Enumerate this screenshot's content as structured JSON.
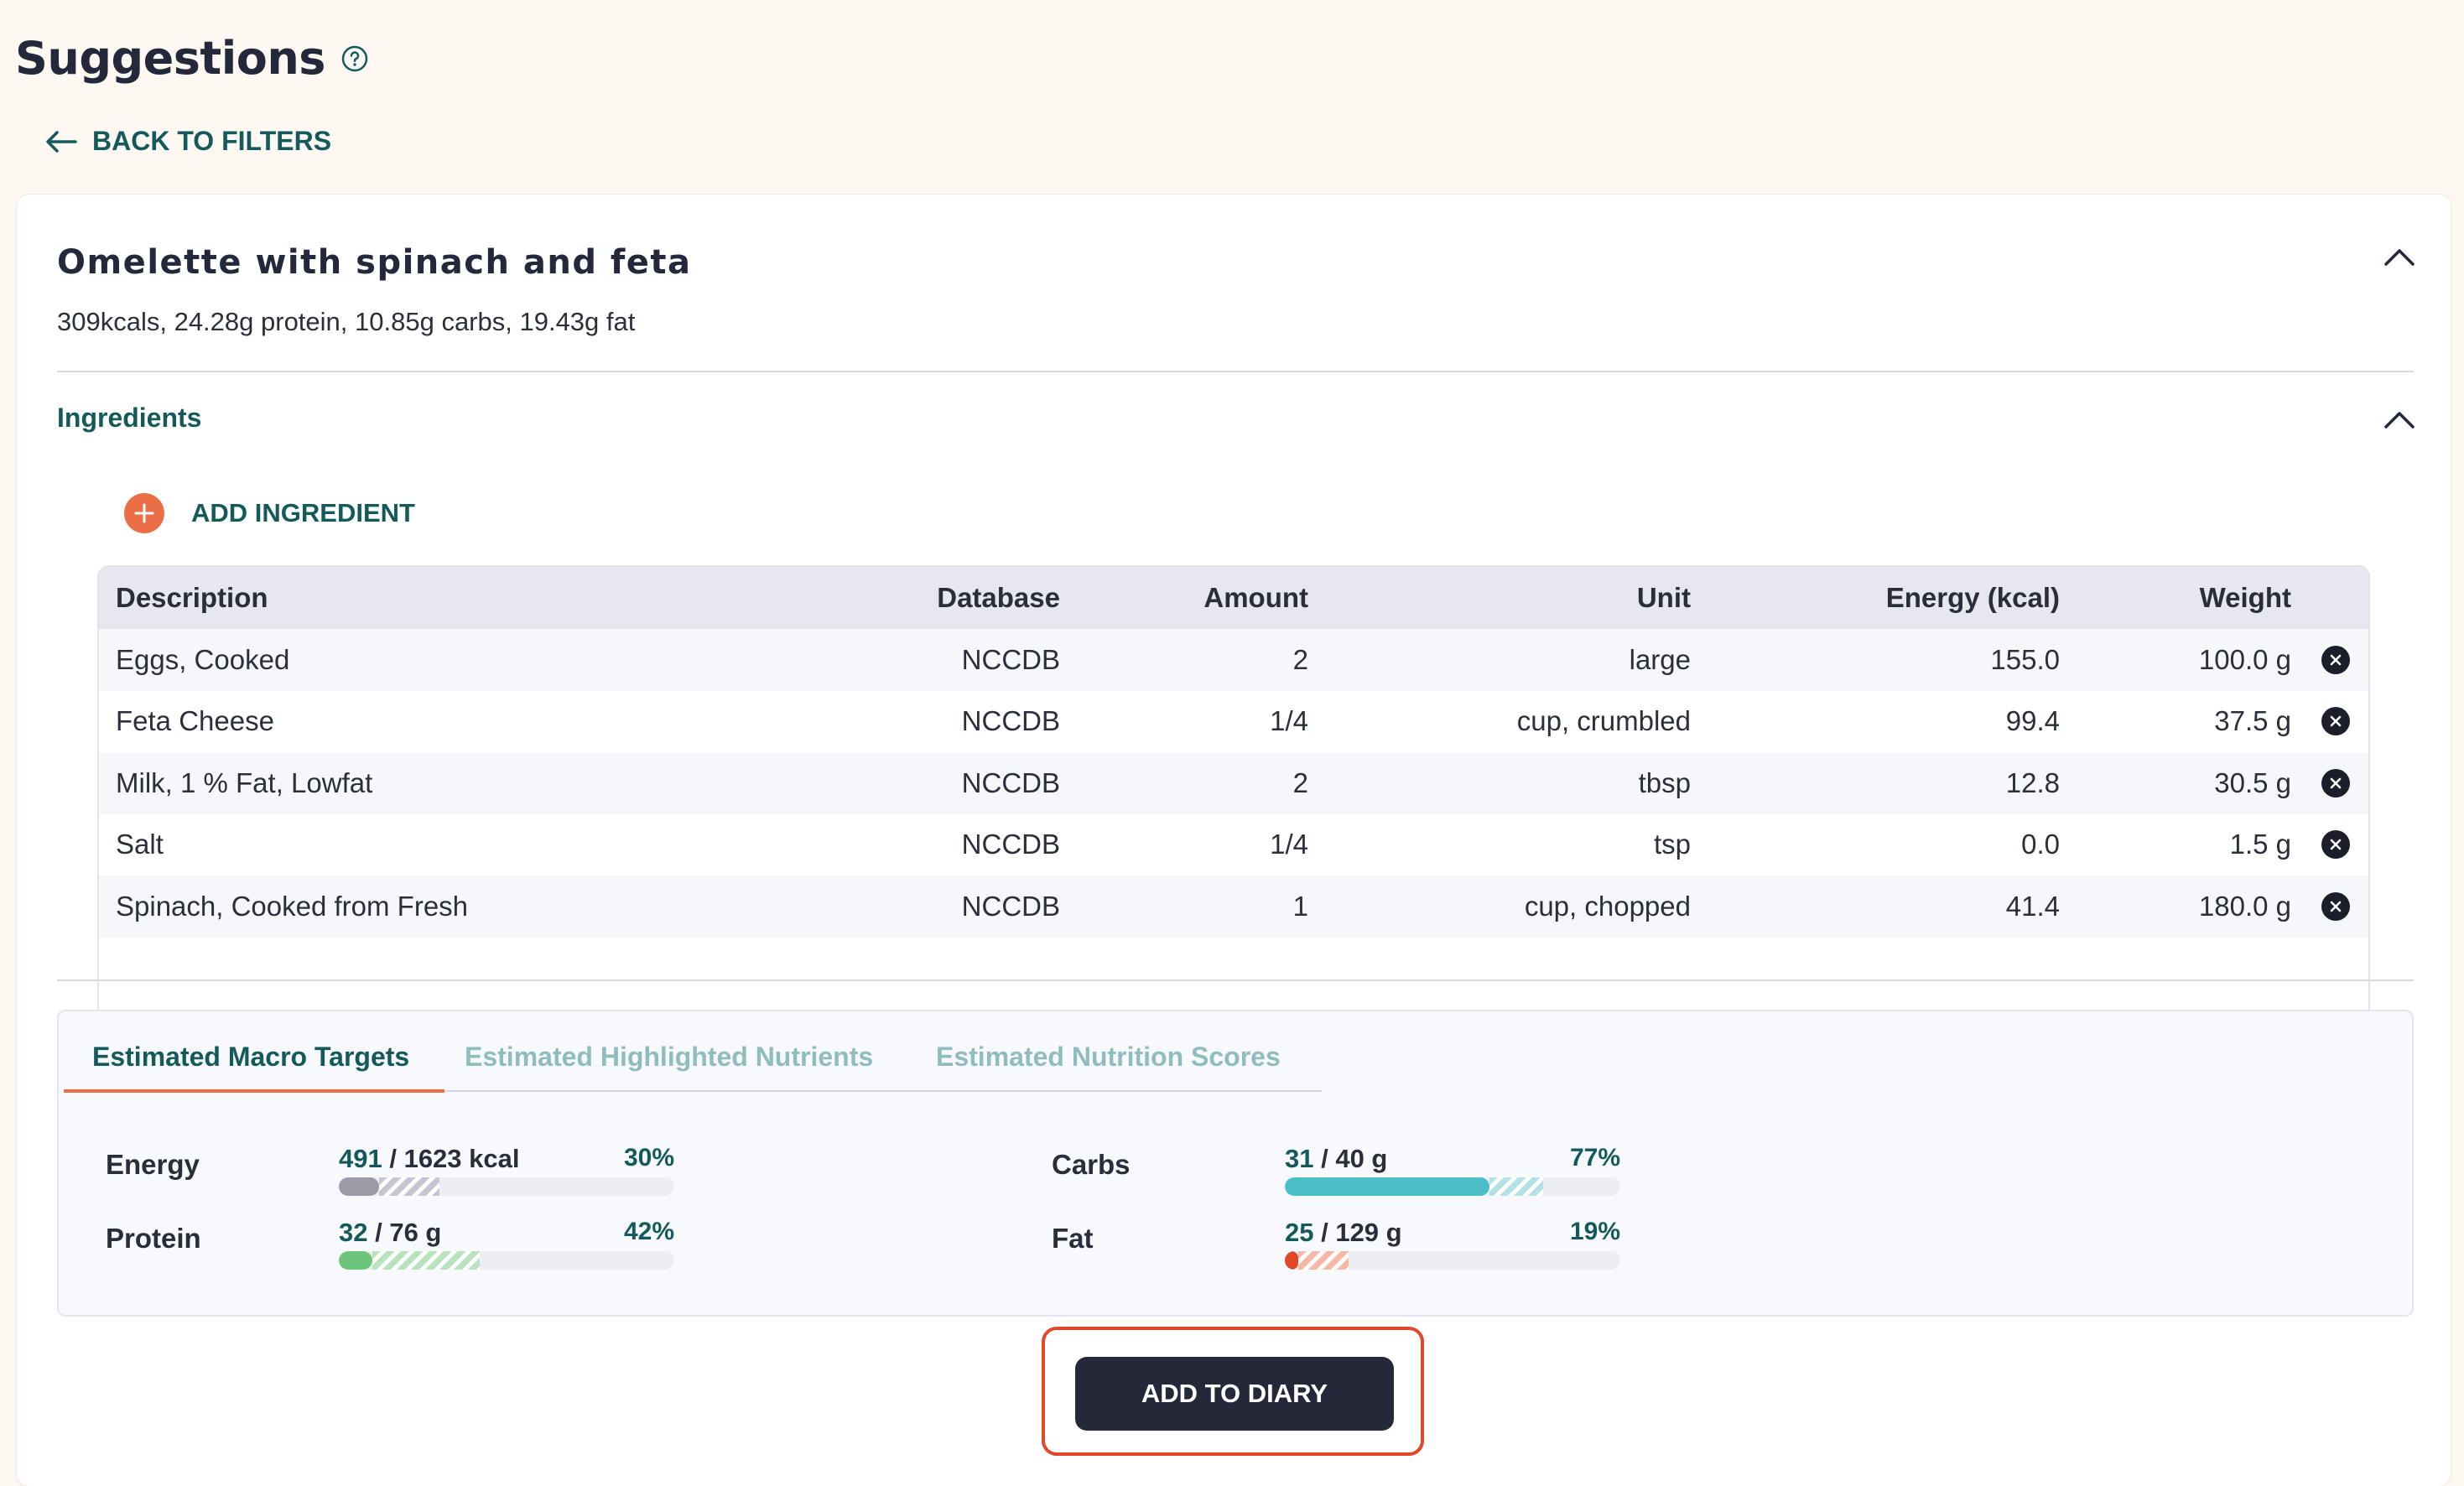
{
  "page": {
    "title": "Suggestions",
    "back_label": "BACK TO FILTERS"
  },
  "recipe": {
    "name": "Omelette with spinach and feta",
    "summary": "309kcals, 24.28g protein, 10.85g carbs, 19.43g fat",
    "ingredients_label": "Ingredients",
    "add_ingredient_label": "ADD INGREDIENT"
  },
  "table": {
    "headers": {
      "description": "Description",
      "database": "Database",
      "amount": "Amount",
      "unit": "Unit",
      "energy": "Energy (kcal)",
      "weight": "Weight"
    },
    "rows": [
      {
        "description": "Eggs, Cooked",
        "database": "NCCDB",
        "amount": "2",
        "unit": "large",
        "energy": "155.0",
        "weight": "100.0 g"
      },
      {
        "description": "Feta Cheese",
        "database": "NCCDB",
        "amount": "1/4",
        "unit": "cup, crumbled",
        "energy": "99.4",
        "weight": "37.5 g"
      },
      {
        "description": "Milk, 1 % Fat, Lowfat",
        "database": "NCCDB",
        "amount": "2",
        "unit": "tbsp",
        "energy": "12.8",
        "weight": "30.5 g"
      },
      {
        "description": "Salt",
        "database": "NCCDB",
        "amount": "1/4",
        "unit": "tsp",
        "energy": "0.0",
        "weight": "1.5 g"
      },
      {
        "description": "Spinach, Cooked from Fresh",
        "database": "NCCDB",
        "amount": "1",
        "unit": "cup, chopped",
        "energy": "41.4",
        "weight": "180.0 g"
      }
    ]
  },
  "tabs": {
    "macro": "Estimated Macro Targets",
    "nutrients": "Estimated Highlighted Nutrients",
    "scores": "Estimated Nutrition Scores"
  },
  "macros": {
    "energy": {
      "label": "Energy",
      "current": "491",
      "total": " / 1623 kcal",
      "pct": "30%",
      "fill": 0.12,
      "extra": 0.18,
      "color": "#9b9ba8",
      "stripe": "#c6c6d2"
    },
    "protein": {
      "label": "Protein",
      "current": "32",
      "total": " / 76 g",
      "pct": "42%",
      "fill": 0.1,
      "extra": 0.32,
      "color": "#6cc57a",
      "stripe": "#b9e3bf"
    },
    "carbs": {
      "label": "Carbs",
      "current": "31",
      "total": " / 40 g",
      "pct": "77%",
      "fill": 0.61,
      "extra": 0.16,
      "color": "#4bbfc7",
      "stripe": "#b3e2e6"
    },
    "fat": {
      "label": "Fat",
      "current": "25",
      "total": " / 129 g",
      "pct": "19%",
      "fill": 0.04,
      "extra": 0.15,
      "color": "#e2472a",
      "stripe": "#f6b7a5"
    }
  },
  "actions": {
    "add_to_diary": "ADD TO DIARY"
  },
  "colors": {
    "accent_teal": "#145a5a",
    "accent_orange": "#ea6e46",
    "dark_button": "#242838",
    "highlight_frame": "#e2472a"
  }
}
